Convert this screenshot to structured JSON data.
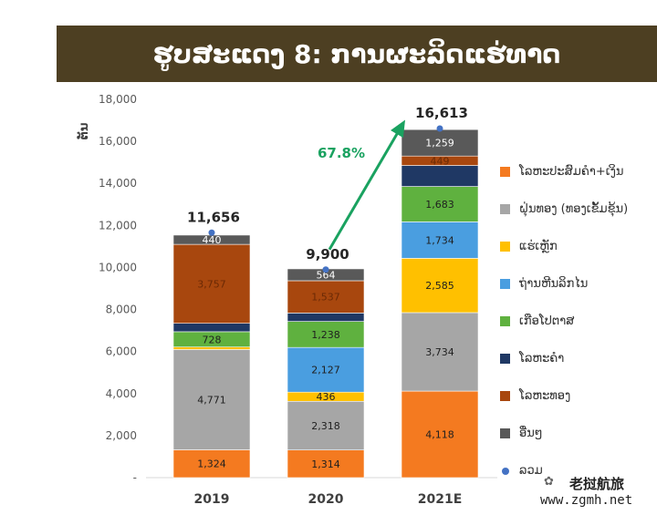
{
  "header": {
    "title": "ຮູບສະແດງ 8: ການຜະລິດແຮ່ທາດ"
  },
  "watermark": {
    "name": "老挝航旅",
    "url": "www.zgmh.net",
    "icon": "wechat-icon"
  },
  "chart_data": {
    "type": "bar",
    "stacked": true,
    "ylabel": "ຕັນ",
    "ylim": [
      0,
      18000
    ],
    "yticks": [
      "-",
      "2,000",
      "4,000",
      "6,000",
      "8,000",
      "10,000",
      "12,000",
      "14,000",
      "16,000",
      "18,000"
    ],
    "categories": [
      "2019",
      "2020",
      "2021E"
    ],
    "grid": false,
    "legend_position": "right",
    "growth_annotation": "67.8%",
    "growth_color": "#1aa260",
    "series": [
      {
        "name": "ໂລຫະປະສົມຄຳ+ເງິນ",
        "color": "#f47a20",
        "values": [
          1324,
          1314,
          4118
        ],
        "labels": [
          "1,324",
          "1,314",
          "4,118"
        ]
      },
      {
        "name": "ຝຸ່ນທອງ (ທອງເຂັ້ມຂຸ້ນ)",
        "color": "#a6a6a6",
        "values": [
          4771,
          2318,
          3734
        ],
        "labels": [
          "4,771",
          "2,318",
          "3,734"
        ]
      },
      {
        "name": "ແຮ່ເຫຼັກ",
        "color": "#ffc000",
        "values": [
          120,
          436,
          2585
        ],
        "labels": [
          "",
          "436",
          "2,585"
        ]
      },
      {
        "name": "ຖ່ານຫີນລິກໄນ",
        "color": "#4a9ee0",
        "values": [
          0,
          2127,
          1734
        ],
        "labels": [
          "",
          "2,127",
          "1,734"
        ]
      },
      {
        "name": "ເກືອໂປຕາສ",
        "color": "#5fb13f",
        "values": [
          728,
          1238,
          1683
        ],
        "labels": [
          "728",
          "1,238",
          "1,683"
        ]
      },
      {
        "name": "ໂລຫະຄຳ",
        "color": "#1f3864",
        "values": [
          400,
          400,
          1000
        ],
        "labels": [
          "",
          "",
          ""
        ]
      },
      {
        "name": "ໂລຫະທອງ",
        "color": "#a8470e",
        "values": [
          3757,
          1537,
          449
        ],
        "labels": [
          "3,757",
          "1,537",
          "449"
        ]
      },
      {
        "name": "ອື່ນໆ",
        "color": "#595959",
        "values": [
          440,
          564,
          1259
        ],
        "labels": [
          "440",
          "564",
          "1,259"
        ]
      }
    ],
    "totals": {
      "name": "ລວມ",
      "color": "#4472c4",
      "values": [
        11656,
        9900,
        16613
      ],
      "labels": [
        "11,656",
        "9,900",
        "16,613"
      ]
    }
  }
}
